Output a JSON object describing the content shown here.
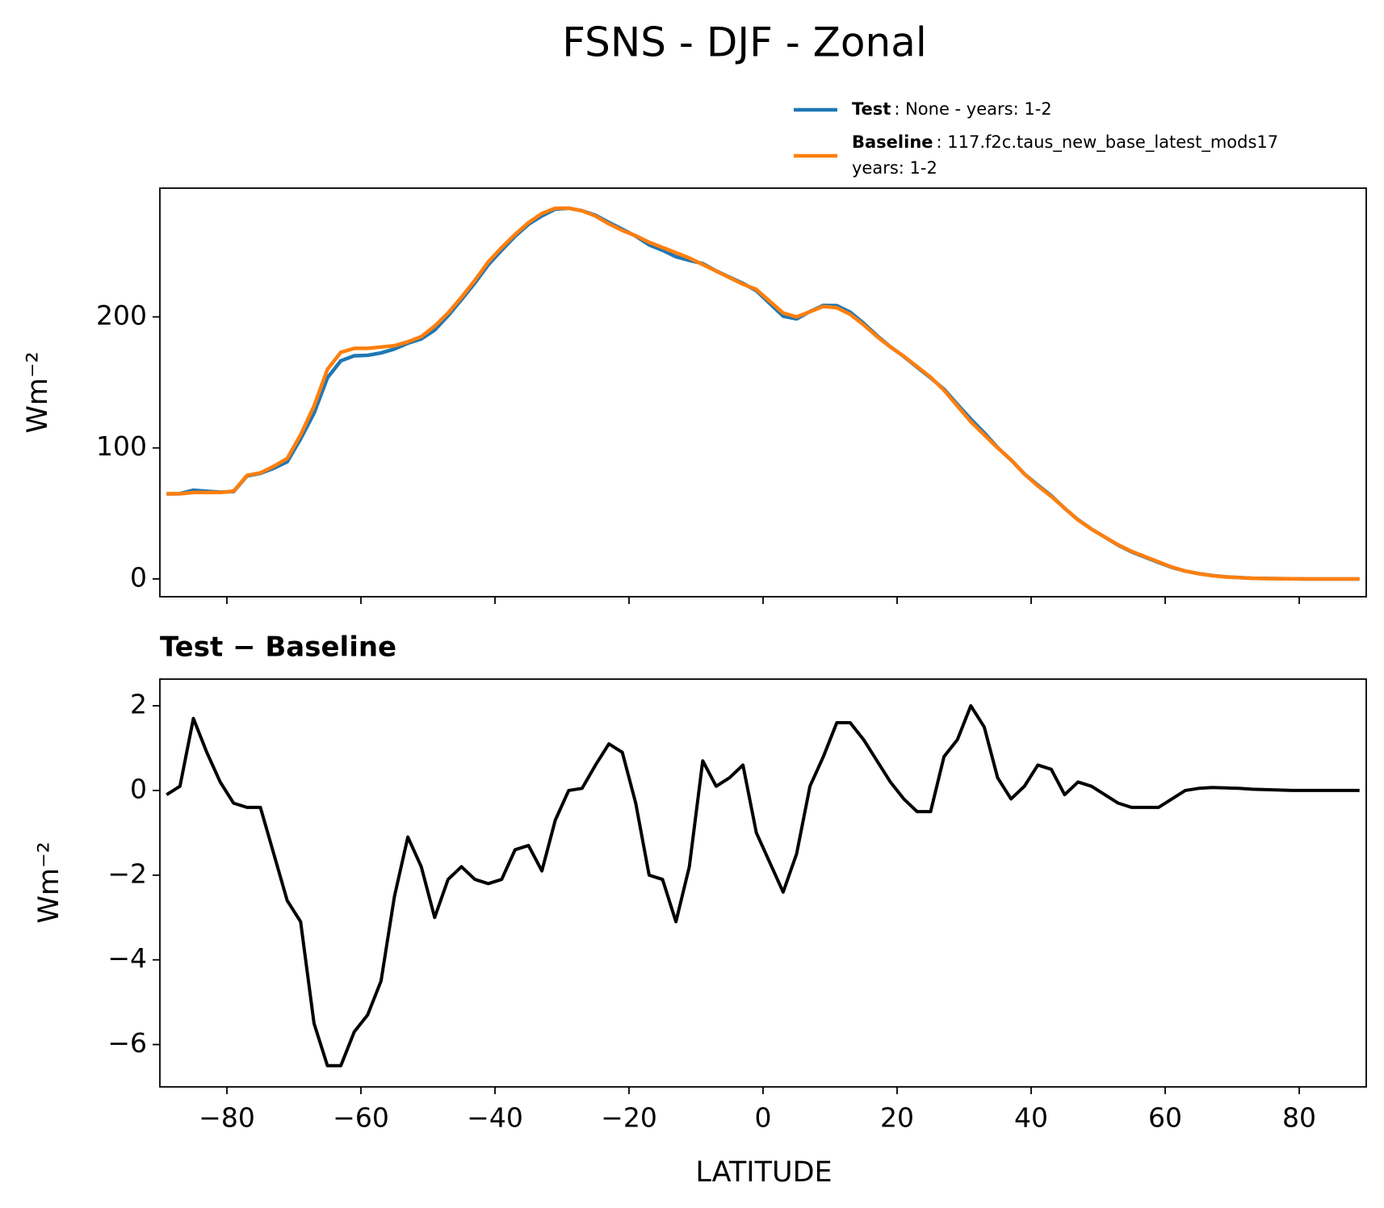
{
  "chart_data": [
    {
      "type": "line",
      "title": "FSNS - DJF - Zonal",
      "y_label": "Wm⁻²",
      "x": [
        -89,
        -87,
        -85,
        -83,
        -81,
        -79,
        -77,
        -75,
        -73,
        -71,
        -69,
        -67,
        -65,
        -63,
        -61,
        -59,
        -57,
        -55,
        -53,
        -51,
        -49,
        -47,
        -45,
        -43,
        -41,
        -39,
        -37,
        -35,
        -33,
        -31,
        -29,
        -27,
        -25,
        -23,
        -21,
        -19,
        -17,
        -15,
        -13,
        -11,
        -9,
        -7,
        -5,
        -3,
        -1,
        1,
        3,
        5,
        7,
        9,
        11,
        13,
        15,
        17,
        19,
        21,
        23,
        25,
        27,
        29,
        31,
        33,
        35,
        37,
        39,
        41,
        43,
        45,
        47,
        49,
        51,
        53,
        55,
        57,
        59,
        61,
        63,
        65,
        67,
        69,
        71,
        73,
        75,
        77,
        79,
        81,
        83,
        85,
        87,
        89
      ],
      "series": [
        {
          "name": "Test",
          "description": [
            ": None - years: 1-2"
          ],
          "color": "#1f77b4",
          "values": [
            64.9,
            65.1,
            67.7,
            66.9,
            66.2,
            66.7,
            78.6,
            80.6,
            84.5,
            89.4,
            106.9,
            126.5,
            153.5,
            166.5,
            170.3,
            170.7,
            172.5,
            175.5,
            179.9,
            183.2,
            190,
            200.9,
            213.2,
            225.9,
            239.8,
            250.9,
            261.6,
            270.7,
            277.1,
            282.3,
            283,
            281.05,
            277.6,
            272.1,
            266.9,
            261.7,
            255,
            250.9,
            245.9,
            243.2,
            240.7,
            235.1,
            230.3,
            225.6,
            220,
            210.3,
            200.6,
            198.5,
            204.1,
            208.8,
            208.6,
            203.6,
            195.2,
            185.7,
            177.2,
            169.8,
            161.5,
            153.5,
            144.8,
            133.2,
            122,
            111.5,
            100.3,
            90.8,
            80.1,
            71.6,
            63.5,
            53.9,
            45.2,
            38.1,
            31.9,
            25.7,
            20.6,
            16.6,
            12.6,
            8.8,
            6,
            4.05,
            2.57,
            1.56,
            1.05,
            0.53,
            0.32,
            0.21,
            0.1,
            0,
            0,
            0,
            0,
            0
          ]
        },
        {
          "name": "Baseline",
          "description": [
            ": 117.f2c.taus_new_base_latest_mods17",
            "years: 1-2"
          ],
          "color": "#ff7f0e",
          "values": [
            65,
            65,
            66,
            66,
            66,
            67,
            79,
            81,
            86,
            92,
            110,
            132,
            160,
            173,
            176,
            176,
            177,
            178,
            181,
            185,
            193,
            203,
            215,
            228,
            242,
            253,
            263,
            272,
            279,
            283,
            283,
            281,
            277,
            271,
            266,
            262,
            257,
            253,
            249,
            245,
            240,
            235,
            230,
            225,
            221,
            212,
            203,
            200,
            204,
            208,
            207,
            202,
            194,
            185,
            177,
            170,
            162,
            154,
            144,
            132,
            120,
            110,
            100,
            91,
            80,
            71,
            63,
            54,
            45,
            38,
            32,
            26,
            21,
            17,
            13,
            9,
            6,
            4,
            2.5,
            1.5,
            1,
            0.5,
            0.3,
            0.2,
            0.1,
            0,
            0,
            0,
            0,
            0
          ]
        }
      ],
      "xlim": [
        -90,
        90
      ],
      "xticks": [
        -80,
        -60,
        -40,
        -20,
        0,
        20,
        40,
        60,
        80
      ],
      "ylim": [
        -13.6,
        298.3
      ],
      "yticks": [
        0,
        100,
        200
      ],
      "legend": "upper right"
    },
    {
      "type": "line",
      "title": "Test − Baseline",
      "y_label": "Wm⁻²",
      "x_label": "LATITUDE",
      "x": [
        -89,
        -87,
        -85,
        -83,
        -81,
        -79,
        -77,
        -75,
        -73,
        -71,
        -69,
        -67,
        -65,
        -63,
        -61,
        -59,
        -57,
        -55,
        -53,
        -51,
        -49,
        -47,
        -45,
        -43,
        -41,
        -39,
        -37,
        -35,
        -33,
        -31,
        -29,
        -27,
        -25,
        -23,
        -21,
        -19,
        -17,
        -15,
        -13,
        -11,
        -9,
        -7,
        -5,
        -3,
        -1,
        1,
        3,
        5,
        7,
        9,
        11,
        13,
        15,
        17,
        19,
        21,
        23,
        25,
        27,
        29,
        31,
        33,
        35,
        37,
        39,
        41,
        43,
        45,
        47,
        49,
        51,
        53,
        55,
        57,
        59,
        61,
        63,
        65,
        67,
        69,
        71,
        73,
        75,
        77,
        79,
        81,
        83,
        85,
        87,
        89
      ],
      "color": "#000000",
      "values": [
        -0.1,
        0.1,
        1.7,
        0.9,
        0.2,
        -0.3,
        -0.4,
        -0.4,
        -1.5,
        -2.6,
        -3.1,
        -5.5,
        -6.5,
        -6.5,
        -5.7,
        -5.3,
        -4.5,
        -2.5,
        -1.1,
        -1.8,
        -3.0,
        -2.1,
        -1.8,
        -2.1,
        -2.2,
        -2.1,
        -1.4,
        -1.3,
        -1.9,
        -0.7,
        0.0,
        0.05,
        0.6,
        1.1,
        0.9,
        -0.3,
        -2.0,
        -2.1,
        -3.1,
        -1.8,
        0.7,
        0.1,
        0.3,
        0.6,
        -1.0,
        -1.7,
        -2.4,
        -1.5,
        0.1,
        0.8,
        1.6,
        1.6,
        1.2,
        0.7,
        0.2,
        -0.2,
        -0.5,
        -0.5,
        0.8,
        1.2,
        2.0,
        1.5,
        0.3,
        -0.2,
        0.1,
        0.6,
        0.5,
        -0.1,
        0.2,
        0.1,
        -0.1,
        -0.3,
        -0.4,
        -0.4,
        -0.4,
        -0.2,
        0,
        0.05,
        0.07,
        0.06,
        0.05,
        0.03,
        0.02,
        0.01,
        0,
        0,
        0,
        0,
        0,
        0
      ],
      "xlim": [
        -90,
        90
      ],
      "xticks": [
        {
          "value": -80,
          "label": "−80"
        },
        {
          "value": -60,
          "label": "−60"
        },
        {
          "value": -40,
          "label": "−40"
        },
        {
          "value": -20,
          "label": "−20"
        },
        0,
        20,
        40,
        60,
        80
      ],
      "ylim": [
        -7.0,
        2.63
      ],
      "yticks": [
        {
          "value": -6,
          "label": "−6"
        },
        {
          "value": -4,
          "label": "−4"
        },
        {
          "value": -2,
          "label": "−2"
        },
        0,
        2
      ]
    }
  ]
}
